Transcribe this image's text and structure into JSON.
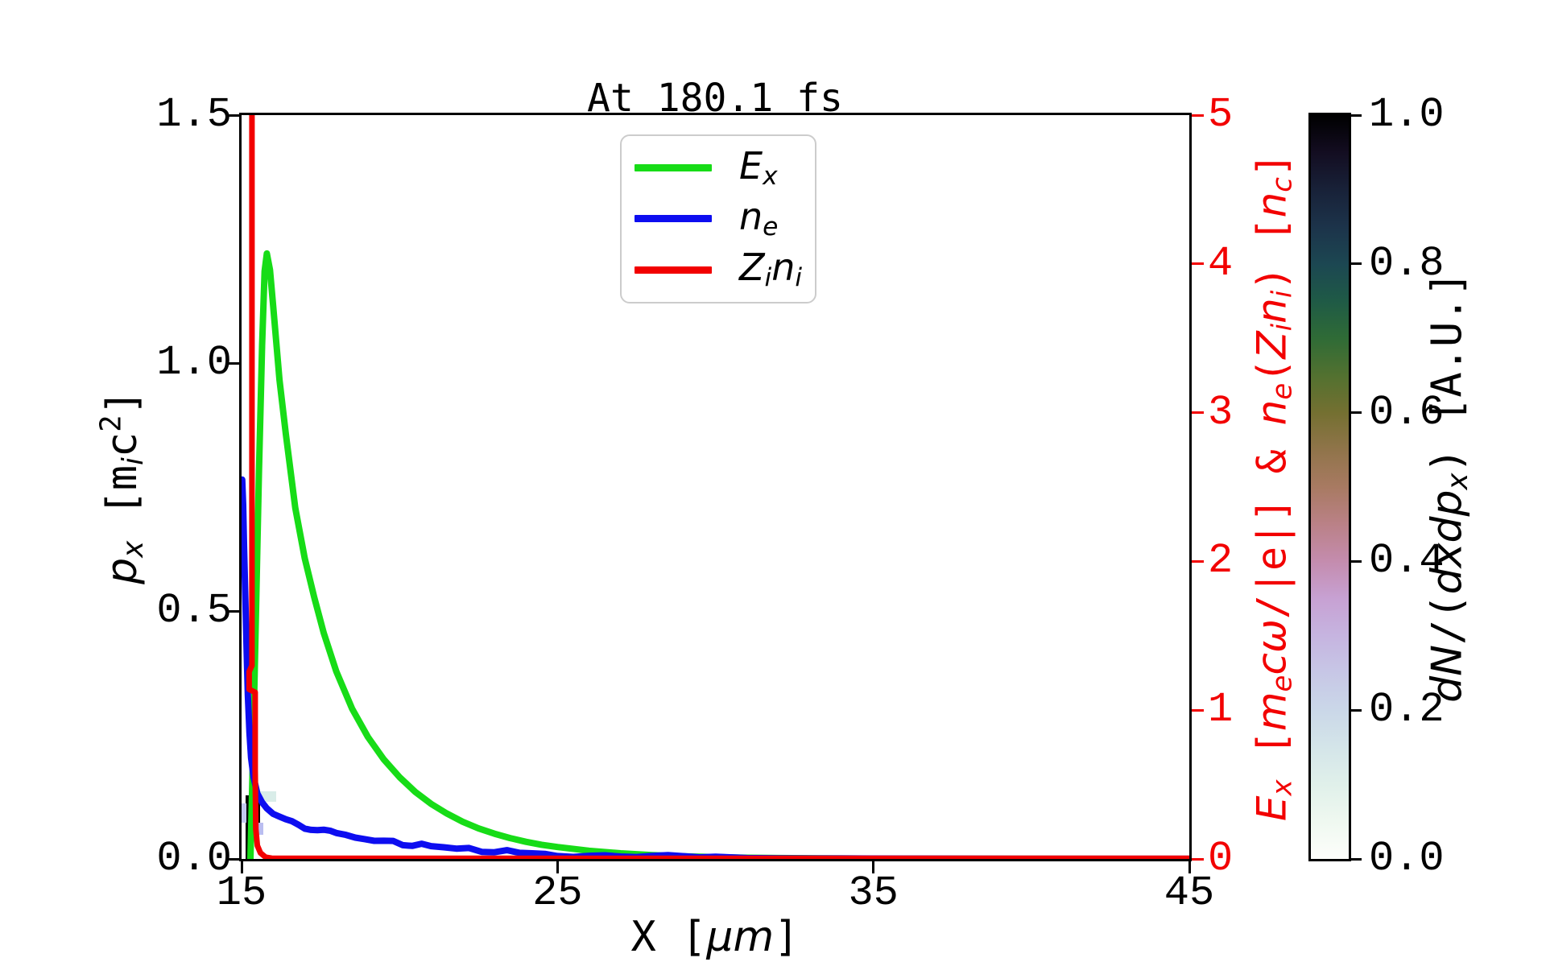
{
  "figure": {
    "title": "At 180.1 fs",
    "background": "#ffffff",
    "text_color": "#000000",
    "right_axis_color": "#f20000"
  },
  "chart_data": {
    "type": "line",
    "title": "At 180.1 fs",
    "xlabel": "X [μm]",
    "ylabel_left": "p_x [m_i c^2]",
    "ylabel_right": "E_x [m_e cω/|e|] & n_e(Z_i n_i) [n_c]",
    "x_range": [
      15,
      45
    ],
    "y_left_range": [
      0.0,
      1.5
    ],
    "y_right_range": [
      0,
      5
    ],
    "grid": false,
    "legend_position": "upper center-left inside",
    "x_ticks": {
      "values": [
        15,
        25,
        35,
        45
      ],
      "labels": [
        "15",
        "25",
        "35",
        "45"
      ]
    },
    "y_left_ticks": {
      "values": [
        1.5,
        1.0,
        0.5,
        0.0
      ],
      "labels": [
        "1.5",
        "1.0",
        "0.5",
        "0.0"
      ]
    },
    "y_right_ticks": {
      "values": [
        5,
        4,
        3,
        2,
        1,
        0
      ],
      "labels": [
        "5",
        "4",
        "3",
        "2",
        "1",
        "0"
      ]
    },
    "series": [
      {
        "name": "E_x",
        "axis": "right",
        "color": "#17dc17",
        "linewidth": 8,
        "points": [
          [
            15.28,
            0.0
          ],
          [
            15.35,
            0.6
          ],
          [
            15.45,
            1.6
          ],
          [
            15.55,
            2.6
          ],
          [
            15.65,
            3.45
          ],
          [
            15.73,
            3.95
          ],
          [
            15.8,
            4.07
          ],
          [
            15.9,
            3.96
          ],
          [
            16.0,
            3.72
          ],
          [
            16.2,
            3.22
          ],
          [
            16.4,
            2.86
          ],
          [
            16.7,
            2.36
          ],
          [
            17.0,
            2.02
          ],
          [
            17.3,
            1.76
          ],
          [
            17.6,
            1.52
          ],
          [
            18.0,
            1.26
          ],
          [
            18.5,
            1.01
          ],
          [
            19.0,
            0.82
          ],
          [
            19.5,
            0.67
          ],
          [
            20.0,
            0.55
          ],
          [
            20.5,
            0.45
          ],
          [
            21.0,
            0.37
          ],
          [
            21.5,
            0.305
          ],
          [
            22.0,
            0.25
          ],
          [
            22.5,
            0.205
          ],
          [
            23.0,
            0.17
          ],
          [
            23.5,
            0.14
          ],
          [
            24.0,
            0.115
          ],
          [
            24.5,
            0.095
          ],
          [
            25.0,
            0.08
          ],
          [
            26.0,
            0.055
          ],
          [
            27.0,
            0.038
          ],
          [
            28.0,
            0.026
          ],
          [
            29.0,
            0.018
          ],
          [
            30.0,
            0.012
          ],
          [
            31.0,
            0.008
          ],
          [
            32.0,
            0.006
          ],
          [
            34.0,
            0.003
          ],
          [
            36.0,
            0.0015
          ],
          [
            40.0,
            0.0005
          ],
          [
            45.0,
            0.0002
          ]
        ]
      },
      {
        "name": "n_e",
        "axis": "right",
        "color": "#0d0df0",
        "linewidth": 8,
        "noisy": true,
        "points": [
          [
            15.02,
            2.55
          ],
          [
            15.05,
            2.38
          ],
          [
            15.08,
            2.1
          ],
          [
            15.12,
            1.75
          ],
          [
            15.16,
            1.4
          ],
          [
            15.2,
            1.1
          ],
          [
            15.25,
            0.85
          ],
          [
            15.3,
            0.68
          ],
          [
            15.38,
            0.55
          ],
          [
            15.5,
            0.44
          ],
          [
            15.65,
            0.38
          ],
          [
            15.8,
            0.34
          ],
          [
            16.0,
            0.305
          ],
          [
            16.2,
            0.285
          ],
          [
            16.4,
            0.262
          ],
          [
            16.6,
            0.248
          ],
          [
            16.8,
            0.232
          ],
          [
            17.0,
            0.215
          ],
          [
            17.2,
            0.208
          ],
          [
            17.4,
            0.196
          ],
          [
            17.6,
            0.186
          ],
          [
            17.8,
            0.176
          ],
          [
            18.0,
            0.168
          ],
          [
            18.3,
            0.155
          ],
          [
            18.6,
            0.146
          ],
          [
            18.9,
            0.135
          ],
          [
            19.2,
            0.128
          ],
          [
            19.5,
            0.118
          ],
          [
            19.8,
            0.11
          ],
          [
            20.1,
            0.103
          ],
          [
            20.4,
            0.096
          ],
          [
            20.7,
            0.091
          ],
          [
            21.0,
            0.084
          ],
          [
            21.4,
            0.077
          ],
          [
            21.8,
            0.069
          ],
          [
            22.2,
            0.064
          ],
          [
            22.6,
            0.058
          ],
          [
            23.0,
            0.052
          ],
          [
            23.4,
            0.047
          ],
          [
            23.8,
            0.042
          ],
          [
            24.2,
            0.038
          ],
          [
            24.6,
            0.034
          ],
          [
            25.0,
            0.031
          ],
          [
            25.5,
            0.027
          ],
          [
            26.0,
            0.024
          ],
          [
            26.5,
            0.021
          ],
          [
            27.0,
            0.018
          ],
          [
            27.5,
            0.016
          ],
          [
            28.0,
            0.014
          ],
          [
            28.5,
            0.012
          ],
          [
            29.0,
            0.01
          ],
          [
            29.5,
            0.009
          ],
          [
            30.0,
            0.008
          ],
          [
            31.0,
            0.006
          ],
          [
            32.0,
            0.0045
          ],
          [
            33.0,
            0.0035
          ],
          [
            34.0,
            0.003
          ],
          [
            35.0,
            0.0025
          ],
          [
            36.0,
            0.002
          ],
          [
            38.0,
            0.0012
          ],
          [
            40.0,
            0.0008
          ],
          [
            42.0,
            0.0005
          ],
          [
            45.0,
            0.0003
          ]
        ]
      },
      {
        "name": "Z_i n_i",
        "axis": "right",
        "color": "#f20000",
        "linewidth": 7,
        "points": [
          [
            15.33,
            5.6
          ],
          [
            15.33,
            1.3
          ],
          [
            15.24,
            1.26
          ],
          [
            15.24,
            1.14
          ],
          [
            15.43,
            1.12
          ],
          [
            15.43,
            0.6
          ],
          [
            15.45,
            0.2
          ],
          [
            15.5,
            0.09
          ],
          [
            15.6,
            0.04
          ],
          [
            15.76,
            0.012
          ],
          [
            15.95,
            0.005
          ],
          [
            17.0,
            0.004
          ],
          [
            45.0,
            0.004
          ]
        ]
      }
    ],
    "heatmap": {
      "name": "dN/(dxdp_x) [A.U.]",
      "axis": "left",
      "cells": [
        {
          "x": [
            15.13,
            15.38
          ],
          "p": [
            0.0,
            0.128
          ],
          "value": 1.0,
          "color": "#000000"
        },
        {
          "x": [
            15.38,
            15.59
          ],
          "p": [
            0.073,
            0.12
          ],
          "value": 1.0,
          "color": "#000000"
        },
        {
          "x": [
            15.38,
            16.1
          ],
          "p": [
            0.115,
            0.136
          ],
          "value": 0.1,
          "color": "#d9ede9"
        },
        {
          "x": [
            15.0,
            15.15
          ],
          "p": [
            0.073,
            0.112
          ],
          "value": 0.2,
          "color": "#c3c9f0"
        },
        {
          "x": [
            15.38,
            15.69
          ],
          "p": [
            0.049,
            0.073
          ],
          "value": 0.22,
          "color": "#babdf0"
        }
      ]
    },
    "colorbar": {
      "label": "dN/(dxdp_x) [A.U.]",
      "range": [
        0.0,
        1.0
      ],
      "ticks": {
        "values": [
          1.0,
          0.8,
          0.6,
          0.4,
          0.2,
          0.0
        ],
        "labels": [
          "1.0",
          "0.8",
          "0.6",
          "0.4",
          "0.2",
          "0.0"
        ]
      },
      "colormap_stops": [
        {
          "v": 0.0,
          "c": "#fdfefb"
        },
        {
          "v": 0.05,
          "c": "#eff8f0"
        },
        {
          "v": 0.1,
          "c": "#e0f0ea"
        },
        {
          "v": 0.15,
          "c": "#d4e5e9"
        },
        {
          "v": 0.2,
          "c": "#cad7e8"
        },
        {
          "v": 0.25,
          "c": "#c7c7e6"
        },
        {
          "v": 0.3,
          "c": "#c6b4e0"
        },
        {
          "v": 0.35,
          "c": "#c7a1d3"
        },
        {
          "v": 0.4,
          "c": "#c48cae"
        },
        {
          "v": 0.45,
          "c": "#ba8187"
        },
        {
          "v": 0.5,
          "c": "#a87a62"
        },
        {
          "v": 0.55,
          "c": "#90744a"
        },
        {
          "v": 0.6,
          "c": "#747031"
        },
        {
          "v": 0.65,
          "c": "#527130"
        },
        {
          "v": 0.7,
          "c": "#2f6b36"
        },
        {
          "v": 0.75,
          "c": "#1f5a46"
        },
        {
          "v": 0.8,
          "c": "#1c4752"
        },
        {
          "v": 0.85,
          "c": "#1c334a"
        },
        {
          "v": 0.9,
          "c": "#182138"
        },
        {
          "v": 0.95,
          "c": "#130d21"
        },
        {
          "v": 1.0,
          "c": "#000000"
        }
      ]
    }
  },
  "legend": {
    "entries": [
      {
        "color": "#17dc17",
        "label_plain": "E_x"
      },
      {
        "color": "#0d0df0",
        "label_plain": "n_e"
      },
      {
        "color": "#f20000",
        "label_plain": "Z_i n_i"
      }
    ]
  },
  "rich_labels": {
    "legend_Ex": [
      [
        "E",
        "i"
      ],
      [
        "x",
        "isub"
      ]
    ],
    "legend_ne": [
      [
        "n",
        "i"
      ],
      [
        "e",
        "isub"
      ]
    ],
    "legend_Zini": [
      [
        "Z",
        "i"
      ],
      [
        "i",
        "isub"
      ],
      [
        "n",
        "i"
      ],
      [
        "i",
        "isub"
      ]
    ],
    "ylabel_left": [
      [
        "p",
        "i"
      ],
      [
        "x",
        "isub"
      ],
      [
        " [m",
        ""
      ],
      [
        "i",
        "isub"
      ],
      [
        "c",
        ""
      ],
      [
        "2",
        "sup"
      ],
      [
        "]",
        ""
      ]
    ],
    "ylabel_right": [
      [
        "E",
        "i"
      ],
      [
        "x",
        "isub"
      ],
      [
        " [",
        ""
      ],
      [
        "m",
        "i"
      ],
      [
        "e",
        "isub"
      ],
      [
        "c",
        "i"
      ],
      [
        "ω",
        "i"
      ],
      [
        "/|e|] & ",
        ""
      ],
      [
        "n",
        "i"
      ],
      [
        "e",
        "isub"
      ],
      [
        "(",
        ""
      ],
      [
        "Z",
        "i"
      ],
      [
        "i",
        "isub"
      ],
      [
        "n",
        "i"
      ],
      [
        "i",
        "isub"
      ],
      [
        ") [",
        ""
      ],
      [
        "n",
        "i"
      ],
      [
        "c",
        "isub"
      ],
      [
        "]",
        ""
      ]
    ],
    "xlabel": [
      [
        "X [",
        ""
      ],
      [
        "μ",
        "i"
      ],
      [
        "m",
        "i"
      ],
      [
        "]",
        ""
      ]
    ],
    "cbar_label": [
      [
        "d",
        "i"
      ],
      [
        "N",
        "i"
      ],
      [
        "/(",
        ""
      ],
      [
        "d",
        "i"
      ],
      [
        "x",
        "i"
      ],
      [
        "d",
        "i"
      ],
      [
        "p",
        "i"
      ],
      [
        "x",
        "isub"
      ],
      [
        ")",
        ""
      ],
      [
        " [A.U.]",
        ""
      ]
    ]
  }
}
